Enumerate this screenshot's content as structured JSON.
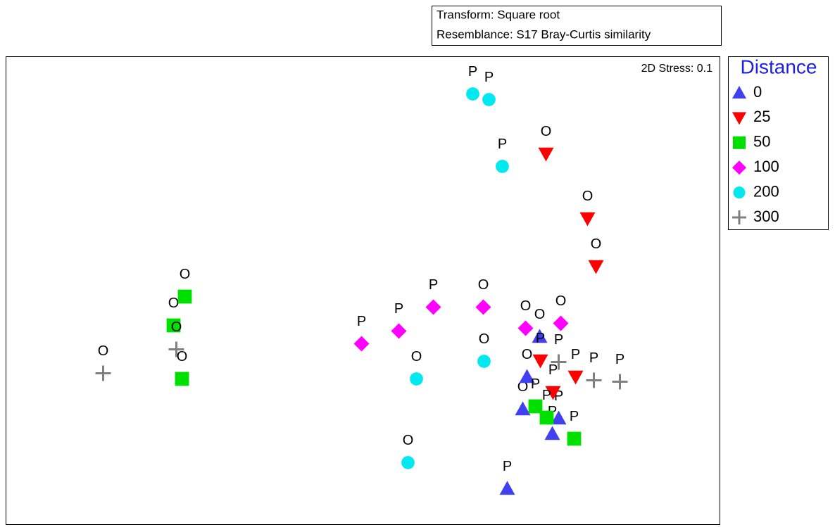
{
  "chart_data": {
    "type": "scatter",
    "info_lines": [
      "Transform: Square root",
      "Resemblance: S17 Bray-Curtis similarity"
    ],
    "annotation": "2D Stress: 0.1",
    "legend_title": "Distance",
    "xlim": [
      0,
      1014
    ],
    "ylim": [
      0,
      665
    ],
    "series": [
      {
        "name": "0",
        "color": "#4040f0",
        "marker": "triangle-up",
        "x": [
          758,
          740,
          734,
          785,
          776,
          712
        ],
        "y": [
          267,
          210,
          164,
          151,
          129,
          51
        ],
        "labels": [
          "O",
          "O",
          "O",
          "P",
          "P",
          "P"
        ]
      },
      {
        "name": "25",
        "color": "#ff0000",
        "marker": "triangle-down",
        "x": [
          767,
          826,
          838,
          759,
          809,
          777
        ],
        "y": [
          527,
          435,
          367,
          233,
          210,
          188
        ],
        "labels": [
          "O",
          "O",
          "O",
          "P",
          "P",
          "P"
        ]
      },
      {
        "name": "50",
        "color": "#00e000",
        "marker": "square",
        "x": [
          254,
          238,
          250,
          752,
          768,
          807
        ],
        "y": [
          324,
          283,
          207,
          168,
          152,
          122
        ],
        "labels": [
          "O",
          "O",
          "O",
          "P",
          "P",
          "P"
        ]
      },
      {
        "name": "100",
        "color": "#ff00ff",
        "marker": "diamond",
        "x": [
          505,
          558,
          607,
          678,
          738,
          788
        ],
        "y": [
          257,
          275,
          309,
          309,
          279,
          286
        ],
        "labels": [
          "P",
          "P",
          "P",
          "O",
          "O",
          "O"
        ]
      },
      {
        "name": "200",
        "color": "#00e8f0",
        "marker": "circle",
        "x": [
          663,
          686,
          705,
          583,
          679,
          571
        ],
        "y": [
          612,
          604,
          509,
          207,
          232,
          88
        ],
        "labels": [
          "P",
          "P",
          "P",
          "O",
          "O",
          "O"
        ]
      },
      {
        "name": "300",
        "color": "#808080",
        "marker": "plus",
        "x": [
          138,
          242,
          785,
          835,
          872
        ],
        "y": [
          215,
          249,
          231,
          205,
          203
        ],
        "labels": [
          "O",
          "O",
          "P",
          "P",
          "P"
        ]
      }
    ]
  }
}
